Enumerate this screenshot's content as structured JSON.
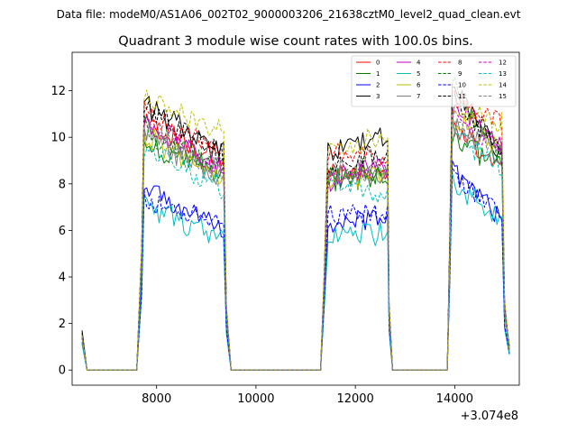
{
  "figure": {
    "suptitle": "Data file: modeM0/AS1A06_002T02_9000003206_21638cztM0_level2_quad_clean.evt"
  },
  "chart_data": {
    "type": "line",
    "title": "Quadrant 3 module wise count rates with 100.0s bins.",
    "xlabel": "",
    "ylabel": "",
    "x_offset_label": "+3.074e8",
    "x_offset": 307400000,
    "xlim": [
      6300,
      15300
    ],
    "ylim": [
      -0.65,
      13.65
    ],
    "xticks": [
      8000,
      10000,
      12000,
      14000
    ],
    "xtick_labels": [
      "8000",
      "10000",
      "12000",
      "14000"
    ],
    "yticks": [
      0,
      2,
      4,
      6,
      8,
      10,
      12
    ],
    "ytick_labels": [
      "0",
      "2",
      "4",
      "6",
      "8",
      "10",
      "12"
    ],
    "grid": false,
    "legend": {
      "placement": "top-right",
      "ncol": 4
    },
    "segments": [
      {
        "rise_start": 7650,
        "plateau_start": 7750,
        "plateau_end": 9350,
        "fall_end": 9500
      },
      {
        "rise_start": 11300,
        "plateau_start": 11450,
        "plateau_end": 12650,
        "fall_end": 12750
      },
      {
        "rise_start": 13850,
        "plateau_start": 13950,
        "plateau_end": 14950,
        "fall_end": 15100
      }
    ],
    "series": [
      {
        "name": "0",
        "color": "#ff0000",
        "dashed": false,
        "start": 1.4,
        "levels": [
          [
            10.7,
            9.2
          ],
          [
            8.3,
            8.5
          ],
          [
            10.6,
            8.8
          ]
        ]
      },
      {
        "name": "1",
        "color": "#008000",
        "dashed": false,
        "start": 1.5,
        "levels": [
          [
            9.9,
            8.5
          ],
          [
            8.2,
            8.3
          ],
          [
            10.2,
            8.9
          ]
        ]
      },
      {
        "name": "2",
        "color": "#0000ff",
        "dashed": false,
        "start": 1.2,
        "levels": [
          [
            8.0,
            6.0
          ],
          [
            6.3,
            6.4
          ],
          [
            8.9,
            6.4
          ]
        ]
      },
      {
        "name": "3",
        "color": "#000000",
        "dashed": false,
        "start": 1.7,
        "levels": [
          [
            11.6,
            9.4
          ],
          [
            9.3,
            10.1
          ],
          [
            12.4,
            9.4
          ]
        ]
      },
      {
        "name": "4",
        "color": "#bf00bf",
        "dashed": false,
        "start": 1.4,
        "levels": [
          [
            10.6,
            8.6
          ],
          [
            8.2,
            8.7
          ],
          [
            11.6,
            9.6
          ]
        ]
      },
      {
        "name": "5",
        "color": "#00bfbf",
        "dashed": false,
        "start": 1.1,
        "levels": [
          [
            7.2,
            5.6
          ],
          [
            5.9,
            5.8
          ],
          [
            8.2,
            6.3
          ]
        ]
      },
      {
        "name": "6",
        "color": "#bfbf00",
        "dashed": false,
        "start": 1.4,
        "levels": [
          [
            10.1,
            8.4
          ],
          [
            8.0,
            8.5
          ],
          [
            10.9,
            9.5
          ]
        ]
      },
      {
        "name": "7",
        "color": "#808080",
        "dashed": false,
        "start": 1.4,
        "levels": [
          [
            10.2,
            8.3
          ],
          [
            8.4,
            8.6
          ],
          [
            10.7,
            9.2
          ]
        ]
      },
      {
        "name": "8",
        "color": "#ff0000",
        "dashed": true,
        "start": 1.4,
        "levels": [
          [
            11.2,
            9.4
          ],
          [
            9.3,
            9.0
          ],
          [
            11.8,
            10.6
          ]
        ]
      },
      {
        "name": "9",
        "color": "#008000",
        "dashed": true,
        "start": 1.5,
        "levels": [
          [
            10.4,
            8.6
          ],
          [
            8.4,
            8.7
          ],
          [
            12.6,
            9.2
          ]
        ]
      },
      {
        "name": "10",
        "color": "#0000ff",
        "dashed": true,
        "start": 1.2,
        "levels": [
          [
            7.4,
            6.3
          ],
          [
            6.6,
            6.7
          ],
          [
            8.4,
            6.9
          ]
        ]
      },
      {
        "name": "11",
        "color": "#000000",
        "dashed": true,
        "start": 1.6,
        "levels": [
          [
            11.5,
            9.2
          ],
          [
            8.7,
            9.3
          ],
          [
            11.9,
            9.6
          ]
        ]
      },
      {
        "name": "12",
        "color": "#bf00bf",
        "dashed": true,
        "start": 1.4,
        "levels": [
          [
            10.8,
            8.7
          ],
          [
            8.2,
            8.8
          ],
          [
            11.2,
            9.4
          ]
        ]
      },
      {
        "name": "13",
        "color": "#00bfbf",
        "dashed": true,
        "start": 1.2,
        "levels": [
          [
            9.6,
            7.9
          ],
          [
            8.0,
            7.6
          ],
          [
            10.4,
            8.6
          ]
        ]
      },
      {
        "name": "14",
        "color": "#bfbf00",
        "dashed": true,
        "start": 1.5,
        "levels": [
          [
            11.9,
            10.3
          ],
          [
            9.4,
            10.0
          ],
          [
            11.2,
            10.7
          ]
        ]
      },
      {
        "name": "15",
        "color": "#808080",
        "dashed": true,
        "start": 1.4,
        "levels": [
          [
            10.4,
            8.6
          ],
          [
            8.4,
            8.6
          ],
          [
            10.9,
            9.0
          ]
        ]
      }
    ]
  }
}
